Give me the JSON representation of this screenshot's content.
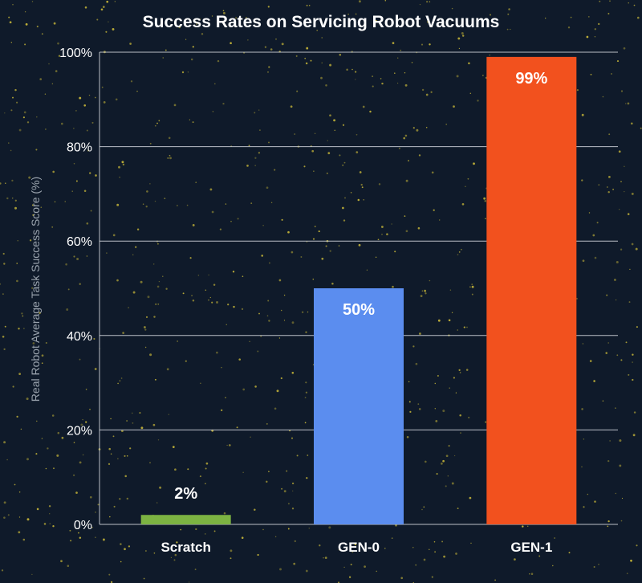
{
  "chart_data": {
    "type": "bar",
    "title": "Success Rates on Servicing Robot Vacuums",
    "ylabel": "Real Robot Average Task Success Score (%)",
    "xlabel": "",
    "ylim": [
      0,
      100
    ],
    "yticks": [
      0,
      20,
      40,
      60,
      80,
      100
    ],
    "ytick_labels": [
      "0%",
      "20%",
      "40%",
      "60%",
      "80%",
      "100%"
    ],
    "grid": true,
    "categories": [
      "Scratch",
      "GEN-0",
      "GEN-1"
    ],
    "values": [
      2,
      50,
      99
    ],
    "data_labels": [
      "2%",
      "50%",
      "99%"
    ],
    "colors": [
      "#7cb342",
      "#5b8def",
      "#f2511e"
    ]
  },
  "theme": {
    "background": "#0f1a2a",
    "text": "#ffffff",
    "grid": "#d9dde3",
    "dots": "#d9c63a"
  }
}
